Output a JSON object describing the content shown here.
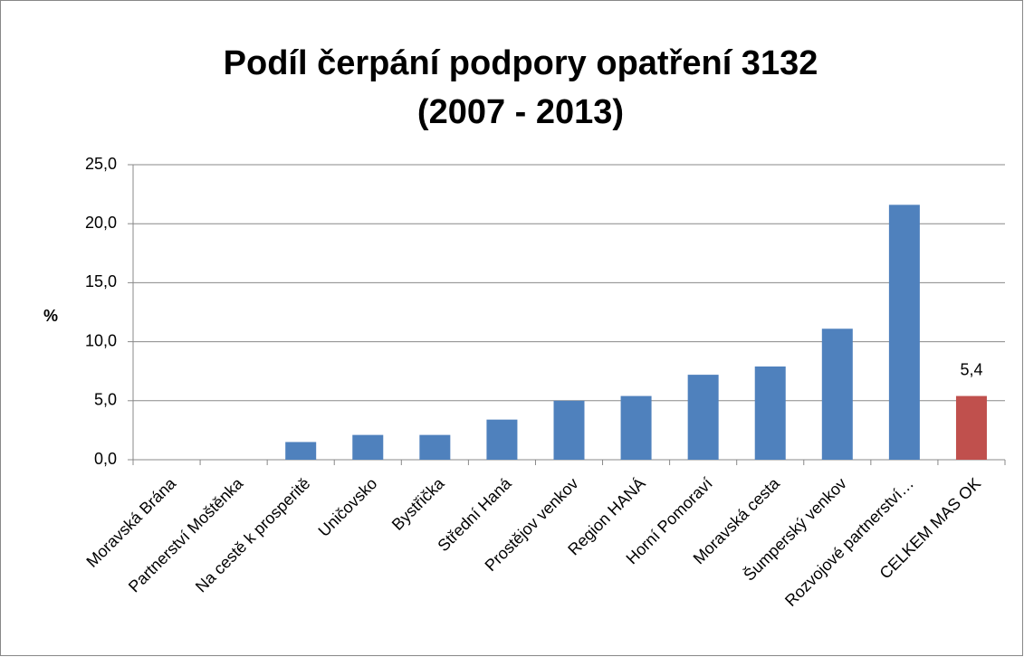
{
  "chart_data": {
    "type": "bar",
    "title": [
      "Podíl čerpání podpory opatření 3132",
      "(2007 - 2013)"
    ],
    "y_label": "%",
    "categories": [
      "Moravská Brána",
      "Partnerství Moštěnka",
      "Na cestě k prosperitě",
      "Uničovsko",
      "Bystřička",
      "Střední Haná",
      "Prostějov venkov",
      "Region HANÁ",
      "Horní Pomoraví",
      "Moravská cesta",
      "Šumperský venkov",
      "Rozvojové partnerství…",
      "CELKEM MAS OK"
    ],
    "values": [
      0,
      0,
      1.5,
      2.1,
      2.1,
      3.4,
      5.0,
      5.4,
      7.2,
      7.9,
      11.1,
      21.6,
      5.4
    ],
    "value_labels": [
      null,
      null,
      null,
      null,
      null,
      null,
      null,
      null,
      null,
      null,
      null,
      null,
      "5,4"
    ],
    "colors": [
      "#4f81bd",
      "#4f81bd",
      "#4f81bd",
      "#4f81bd",
      "#4f81bd",
      "#4f81bd",
      "#4f81bd",
      "#4f81bd",
      "#4f81bd",
      "#4f81bd",
      "#4f81bd",
      "#4f81bd",
      "#c0504d"
    ],
    "ylim": [
      0,
      25
    ],
    "yticks": [
      {
        "value": 0,
        "label": "0,0"
      },
      {
        "value": 5,
        "label": "5,0"
      },
      {
        "value": 10,
        "label": "10,0"
      },
      {
        "value": 15,
        "label": "15,0"
      },
      {
        "value": 20,
        "label": "20,0"
      },
      {
        "value": 25,
        "label": "25,0"
      }
    ],
    "grid": true
  }
}
